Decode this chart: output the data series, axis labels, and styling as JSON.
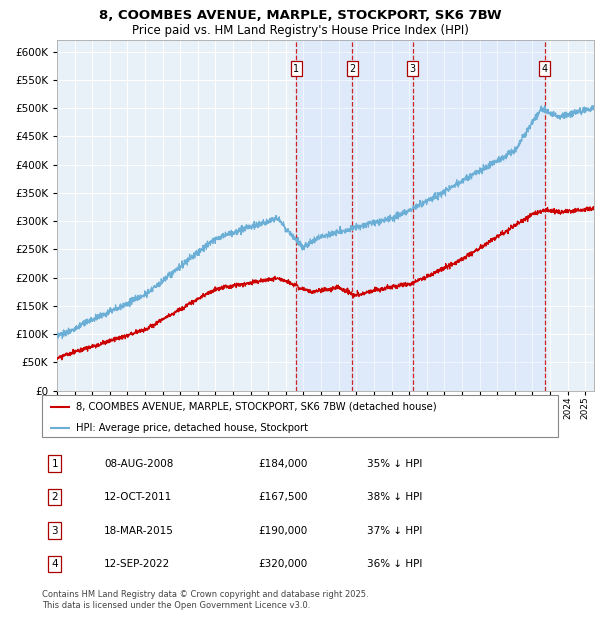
{
  "title_line1": "8, COOMBES AVENUE, MARPLE, STOCKPORT, SK6 7BW",
  "title_line2": "Price paid vs. HM Land Registry's House Price Index (HPI)",
  "ylim": [
    0,
    620000
  ],
  "yticks": [
    0,
    50000,
    100000,
    150000,
    200000,
    250000,
    300000,
    350000,
    400000,
    450000,
    500000,
    550000,
    600000
  ],
  "ytick_labels": [
    "£0",
    "£50K",
    "£100K",
    "£150K",
    "£200K",
    "£250K",
    "£300K",
    "£350K",
    "£400K",
    "£450K",
    "£500K",
    "£550K",
    "£600K"
  ],
  "hpi_color": "#6baed6",
  "price_color": "#cc0000",
  "plot_bg_color": "#e8f0f8",
  "vline_color": "#cc0000",
  "vline_dates": [
    2008.6,
    2011.78,
    2015.21,
    2022.7
  ],
  "sale_numbers": [
    "1",
    "2",
    "3",
    "4"
  ],
  "sale_dates_str": [
    "08-AUG-2008",
    "12-OCT-2011",
    "18-MAR-2015",
    "12-SEP-2022"
  ],
  "sale_prices_str": [
    "£184,000",
    "£167,500",
    "£190,000",
    "£320,000"
  ],
  "sale_hpi_str": [
    "35% ↓ HPI",
    "38% ↓ HPI",
    "37% ↓ HPI",
    "36% ↓ HPI"
  ],
  "legend_label_price": "8, COOMBES AVENUE, MARPLE, STOCKPORT, SK6 7BW (detached house)",
  "legend_label_hpi": "HPI: Average price, detached house, Stockport",
  "footnote_line1": "Contains HM Land Registry data © Crown copyright and database right 2025.",
  "footnote_line2": "This data is licensed under the Open Government Licence v3.0.",
  "xmin": 1995,
  "xmax": 2025.5
}
